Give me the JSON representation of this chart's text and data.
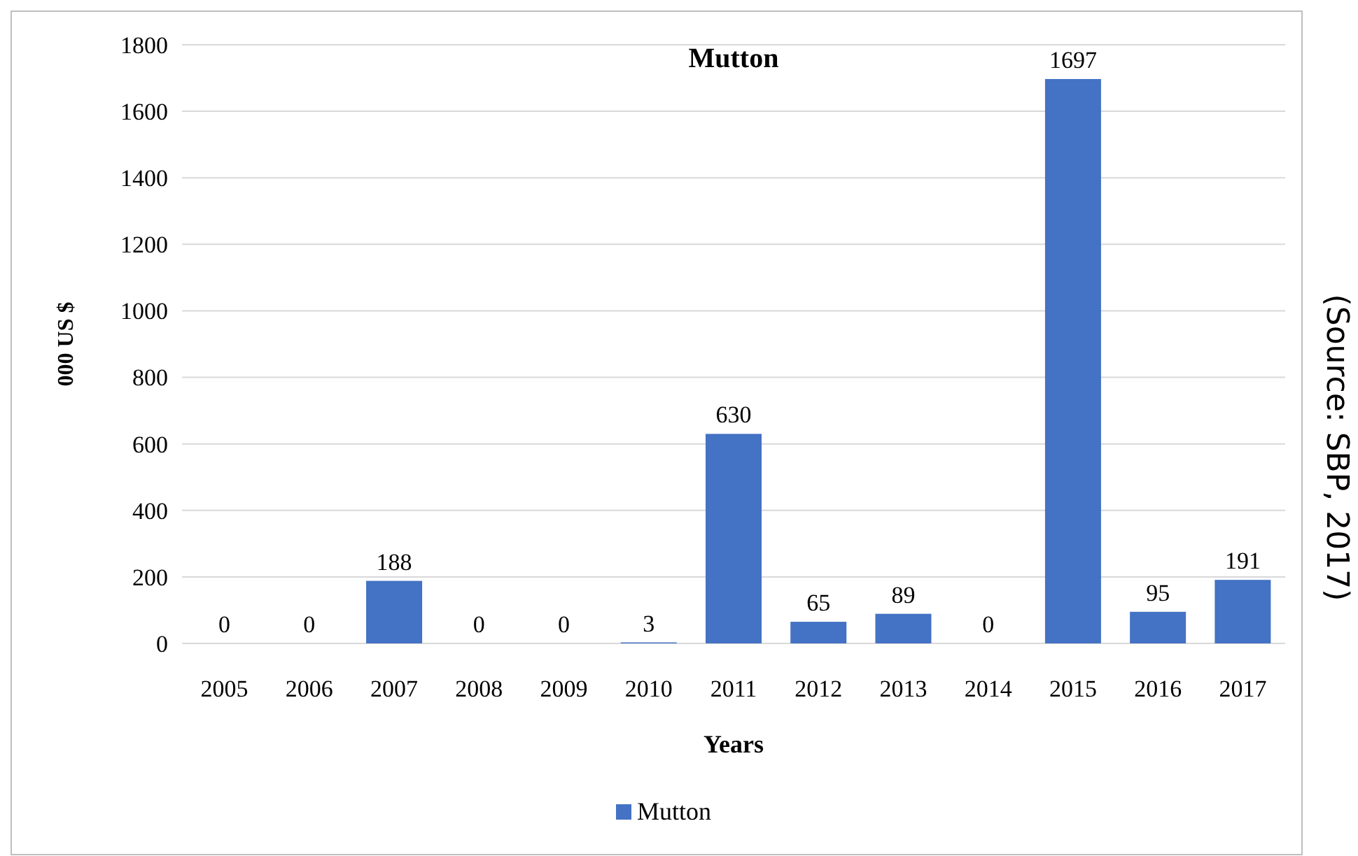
{
  "chart_data": {
    "type": "bar",
    "title": "Mutton",
    "xlabel": "Years",
    "ylabel": "000 US $",
    "categories": [
      "2005",
      "2006",
      "2007",
      "2008",
      "2009",
      "2010",
      "2011",
      "2012",
      "2013",
      "2014",
      "2015",
      "2016",
      "2017"
    ],
    "series": [
      {
        "name": "Mutton",
        "color": "#4472c4",
        "values": [
          0,
          0,
          188,
          0,
          0,
          3,
          630,
          65,
          89,
          0,
          1697,
          95,
          191
        ]
      }
    ],
    "ylim": [
      0,
      1800
    ],
    "yticks": [
      0,
      200,
      400,
      600,
      800,
      1000,
      1200,
      1400,
      1600,
      1800
    ],
    "grid": "y",
    "legend": "bottom",
    "data_labels": true,
    "annotations": [
      "(Source: SBP, 2017)"
    ]
  }
}
